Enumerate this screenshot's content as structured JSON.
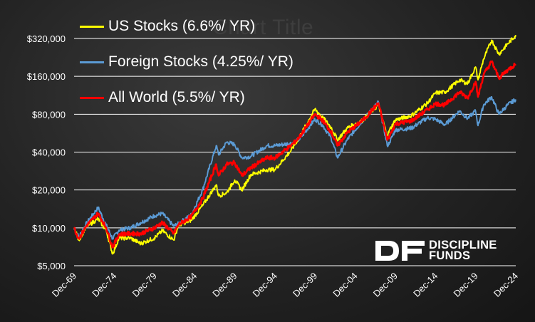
{
  "background_title": "Chart Title",
  "colors": {
    "us": "#ffff00",
    "foreign": "#5b9bd5",
    "world": "#ff0000",
    "grid": "#ffffff",
    "text": "#ffffff"
  },
  "logo": {
    "line1": "DISCIPLINE",
    "line2": "FUNDS"
  },
  "chart_data": {
    "type": "line",
    "y_scale": "log",
    "ylim": [
      5000,
      360000
    ],
    "grid": "horizontal",
    "legend_position": "top-left",
    "x_ticks": [
      "Dec-69",
      "Dec-74",
      "Dec-79",
      "Dec-84",
      "Dec-89",
      "Dec-94",
      "Dec-99",
      "Dec-04",
      "Dec-09",
      "Dec-14",
      "Dec-19",
      "Dec-24"
    ],
    "y_ticks": [
      {
        "value": 5000,
        "label": "$5,000"
      },
      {
        "value": 10000,
        "label": "$10,000"
      },
      {
        "value": 20000,
        "label": "$20,000"
      },
      {
        "value": 40000,
        "label": "$40,000"
      },
      {
        "value": 80000,
        "label": "$80,000"
      },
      {
        "value": 160000,
        "label": "$160,000"
      },
      {
        "value": 320000,
        "label": "$320,000"
      }
    ],
    "x": [
      1969.9,
      1970.5,
      1971.5,
      1972.9,
      1973.9,
      1974.7,
      1975.5,
      1976.9,
      1978.2,
      1979.9,
      1980.9,
      1982.3,
      1982.9,
      1984.5,
      1985.9,
      1987.6,
      1987.9,
      1988.9,
      1989.9,
      1990.8,
      1991.9,
      1993.9,
      1994.9,
      1996.9,
      1997.9,
      1999.9,
      2000.8,
      2001.9,
      2002.7,
      2003.9,
      2005.9,
      2007.8,
      2008.9,
      2009.2,
      2009.9,
      2011.9,
      2013.9,
      2014.9,
      2016.1,
      2017.9,
      2018.9,
      2019.9,
      2020.2,
      2020.9,
      2021.9,
      2022.8,
      2023.9,
      2024.9
    ],
    "series": [
      {
        "name": "US Stocks (6.6%/ YR)",
        "color": "#ffff00",
        "values": [
          10000,
          8000,
          10300,
          11800,
          9500,
          6200,
          8300,
          8300,
          7500,
          8300,
          9500,
          8000,
          10500,
          11500,
          15000,
          22000,
          18000,
          19000,
          24000,
          20000,
          26500,
          29000,
          29000,
          41000,
          52000,
          88000,
          76000,
          63000,
          50000,
          62000,
          72000,
          95000,
          54000,
          60000,
          72000,
          78000,
          98000,
          118000,
          120000,
          150000,
          140000,
          190000,
          150000,
          220000,
          310000,
          240000,
          290000,
          340000
        ]
      },
      {
        "name": "Foreign Stocks (4.25%/ YR)",
        "color": "#5b9bd5",
        "values": [
          9800,
          8500,
          11000,
          14500,
          10500,
          8200,
          9600,
          10000,
          11000,
          12500,
          13000,
          10300,
          10800,
          12700,
          20000,
          45000,
          38000,
          48000,
          46000,
          36000,
          37000,
          45000,
          45000,
          47000,
          50000,
          73000,
          66000,
          52000,
          36000,
          50000,
          72000,
          100000,
          45000,
          48000,
          60000,
          62000,
          75000,
          73000,
          66000,
          85000,
          74000,
          85000,
          65000,
          95000,
          110000,
          80000,
          95000,
          105000
        ]
      },
      {
        "name": "All World (5.5%/ YR)",
        "color": "#ff0000",
        "values": [
          9900,
          8200,
          10500,
          13000,
          10000,
          7000,
          8900,
          9000,
          9000,
          10000,
          11000,
          9000,
          10600,
          12300,
          17000,
          32000,
          26000,
          32000,
          33000,
          26000,
          30000,
          36000,
          36000,
          45000,
          52000,
          80000,
          72000,
          58000,
          45000,
          57000,
          72000,
          98000,
          50000,
          54000,
          67000,
          71000,
          87000,
          97000,
          95000,
          120000,
          108000,
          145000,
          110000,
          165000,
          210000,
          155000,
          180000,
          200000
        ]
      }
    ]
  }
}
